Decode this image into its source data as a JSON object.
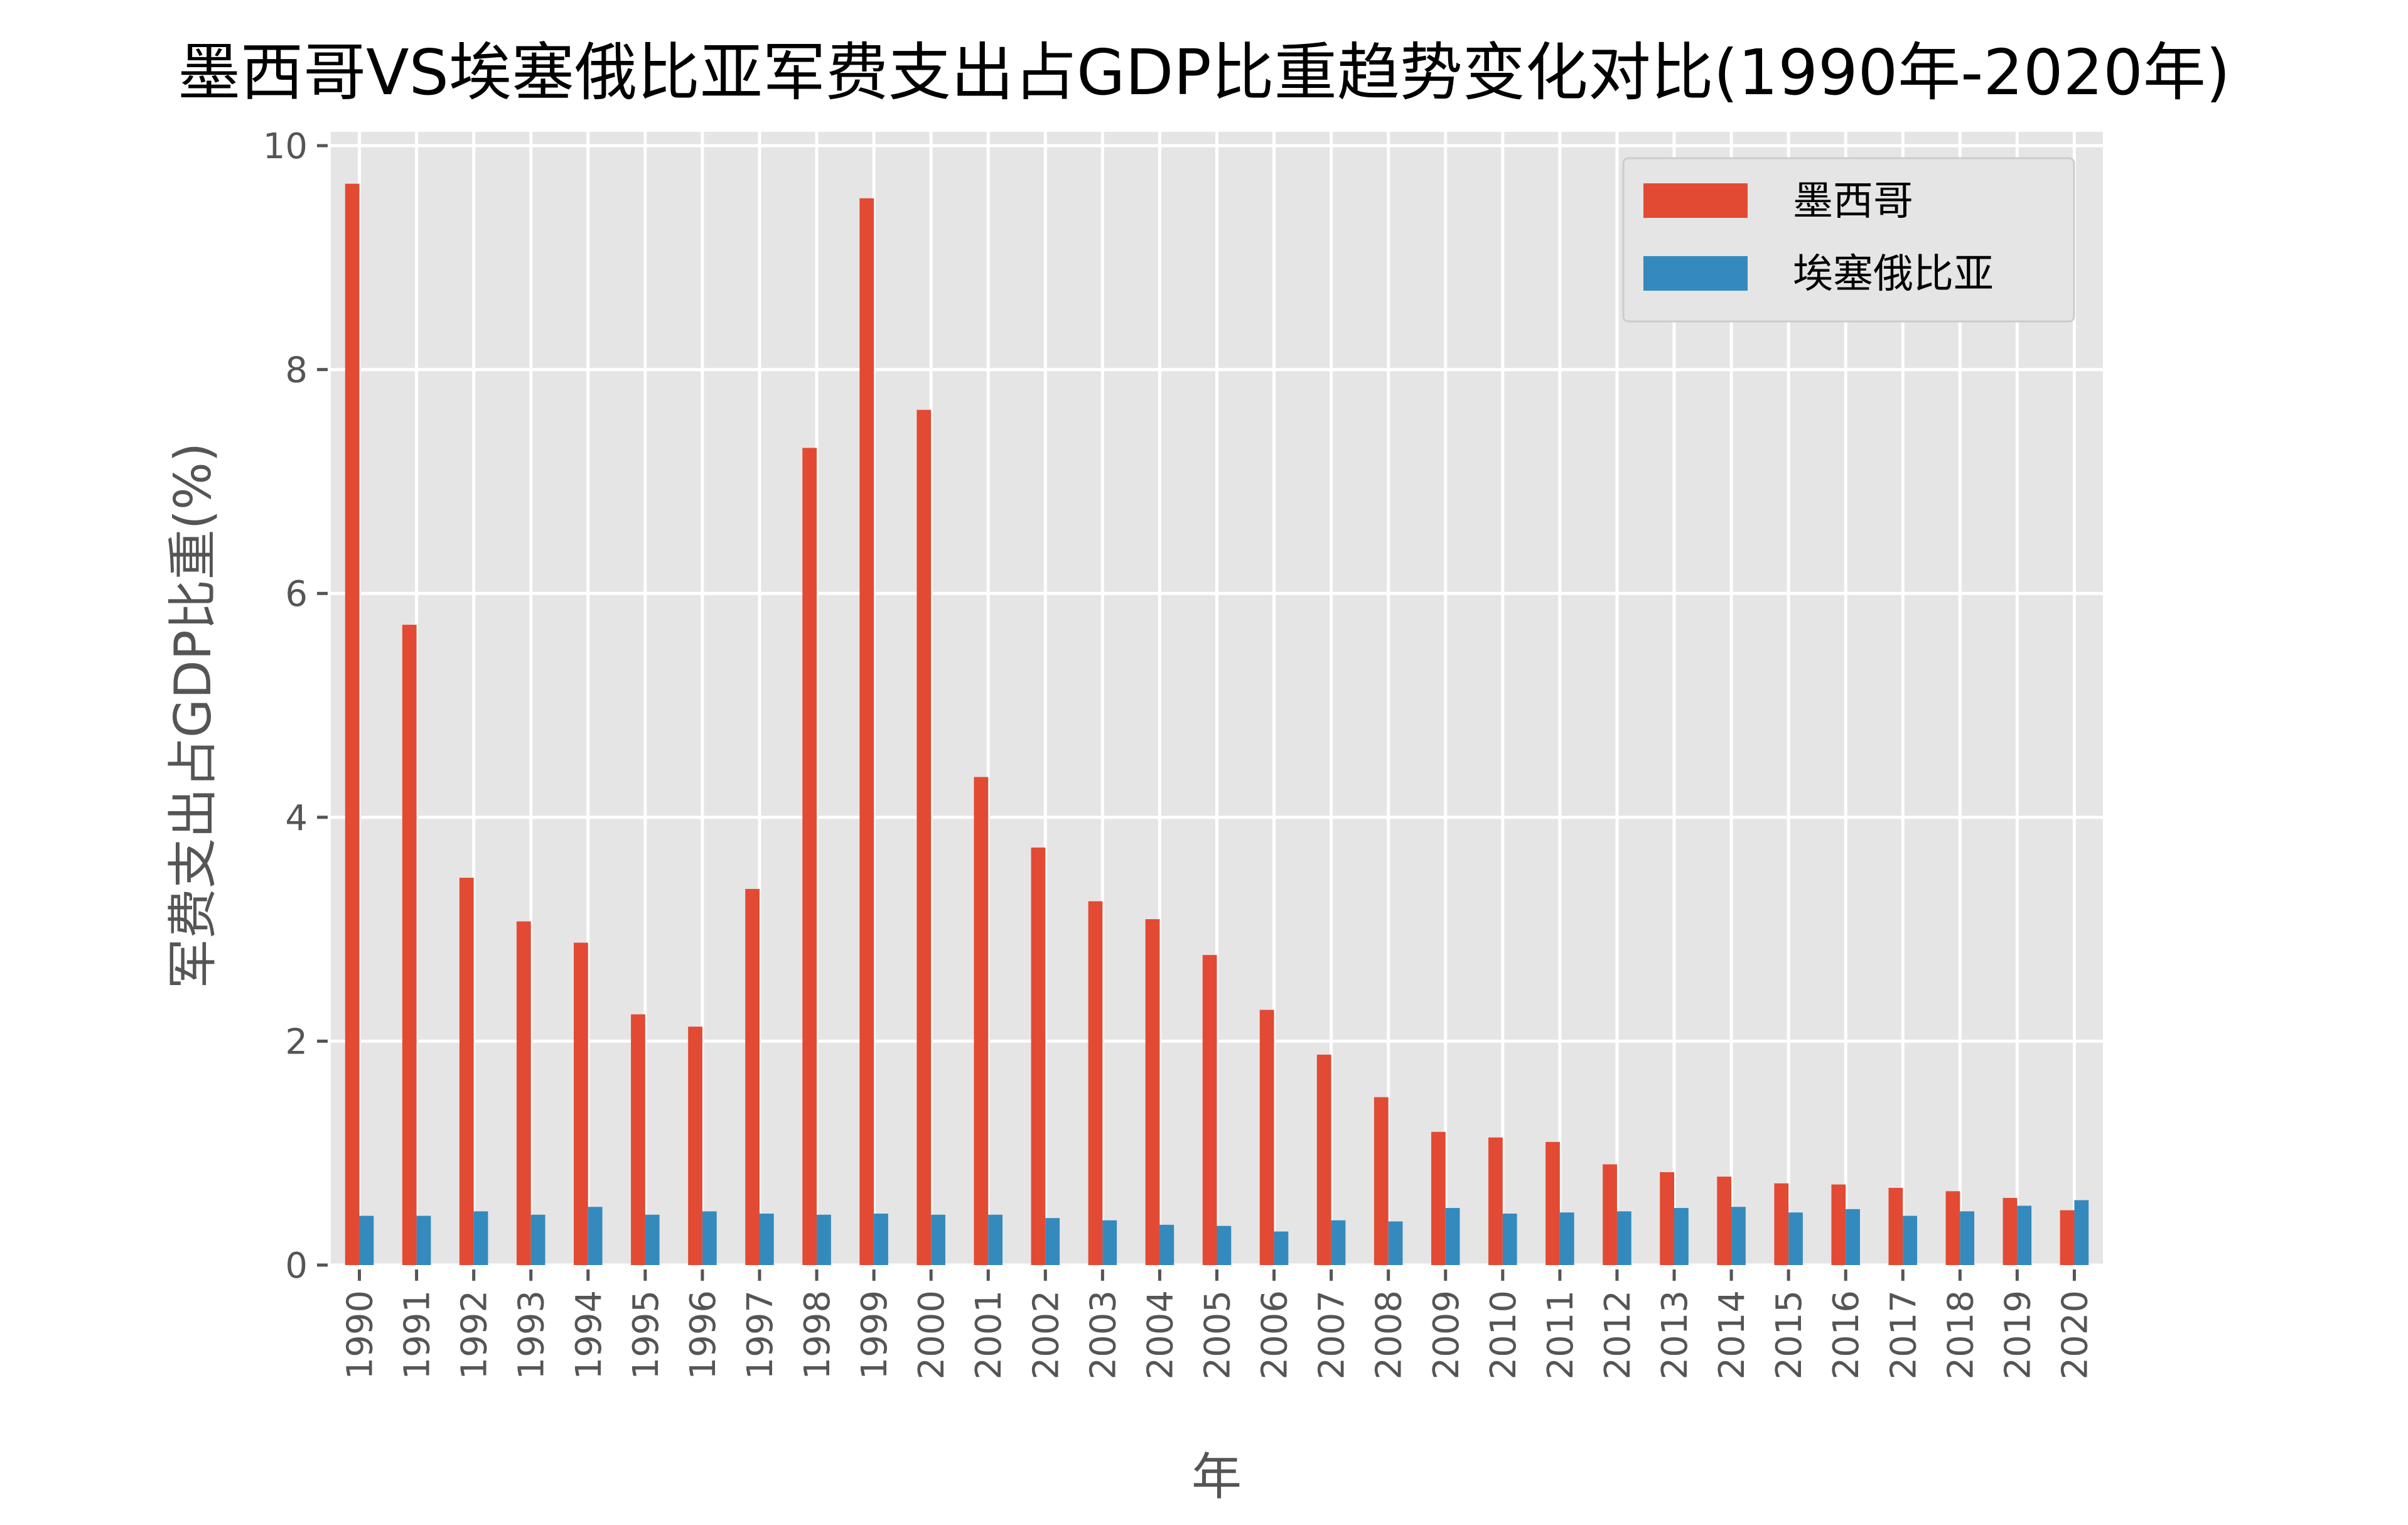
{
  "chart_data": {
    "type": "bar",
    "title": "墨西哥VS埃塞俄比亚军费支出占GDP比重趋势变化对比(1990年-2020年)",
    "xlabel": "年",
    "ylabel": "军费支出占GDP比重(%)",
    "ylim": [
      0,
      10
    ],
    "yticks": [
      0,
      2,
      4,
      6,
      8,
      10
    ],
    "grid": true,
    "legend_position": "top-right",
    "categories": [
      "1990",
      "1991",
      "1992",
      "1993",
      "1994",
      "1995",
      "1996",
      "1997",
      "1998",
      "1999",
      "2000",
      "2001",
      "2002",
      "2003",
      "2004",
      "2005",
      "2006",
      "2007",
      "2008",
      "2009",
      "2010",
      "2011",
      "2012",
      "2013",
      "2014",
      "2015",
      "2016",
      "2017",
      "2018",
      "2019",
      "2020"
    ],
    "series": [
      {
        "name": "墨西哥",
        "color": "#E24A33",
        "values": [
          9.66,
          5.72,
          3.46,
          3.07,
          2.88,
          2.24,
          2.13,
          3.36,
          7.3,
          9.53,
          7.64,
          4.36,
          3.73,
          3.25,
          3.09,
          2.77,
          2.28,
          1.88,
          1.5,
          1.19,
          1.14,
          1.1,
          0.9,
          0.83,
          0.79,
          0.73,
          0.72,
          0.69,
          0.66,
          0.6,
          0.49
        ]
      },
      {
        "name": "埃塞俄比亚",
        "color": "#348ABD",
        "values": [
          0.44,
          0.44,
          0.48,
          0.45,
          0.52,
          0.45,
          0.48,
          0.46,
          0.45,
          0.46,
          0.45,
          0.45,
          0.42,
          0.4,
          0.36,
          0.35,
          0.3,
          0.4,
          0.39,
          0.51,
          0.46,
          0.47,
          0.48,
          0.51,
          0.52,
          0.47,
          0.5,
          0.44,
          0.48,
          0.53,
          0.58
        ]
      }
    ]
  }
}
